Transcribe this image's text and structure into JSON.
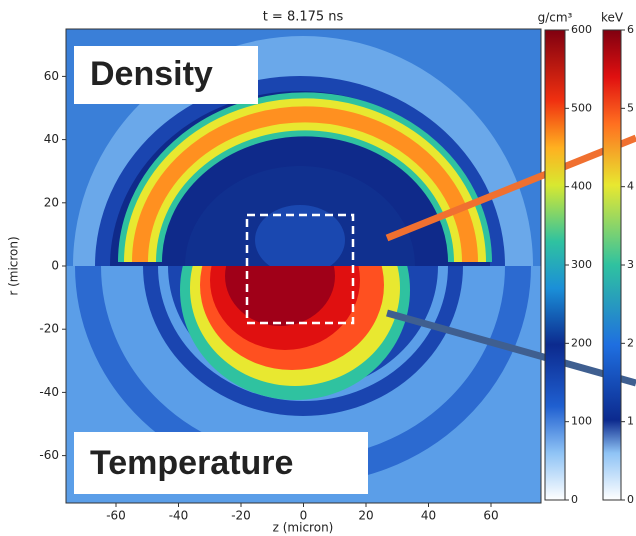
{
  "chart_data": {
    "type": "heatmap",
    "title": "t = 8.175 ns",
    "xlabel": "z (micron)",
    "ylabel": "r (micron)",
    "annotations": [
      "Density",
      "Temperature"
    ],
    "xlim": [
      -76,
      76
    ],
    "ylim": [
      -75,
      75
    ],
    "xticks": [
      -60,
      -40,
      -20,
      0,
      20,
      40,
      60
    ],
    "yticks": [
      -60,
      -40,
      -20,
      0,
      20,
      40,
      60
    ],
    "colorbars": [
      {
        "label": "g/cm³",
        "lim": [
          0,
          600
        ],
        "ticks": [
          0,
          100,
          200,
          300,
          400,
          500,
          600
        ]
      },
      {
        "label": "keV",
        "lim": [
          0,
          6
        ],
        "ticks": [
          0,
          1,
          2,
          3,
          4,
          5,
          6
        ]
      }
    ]
  }
}
